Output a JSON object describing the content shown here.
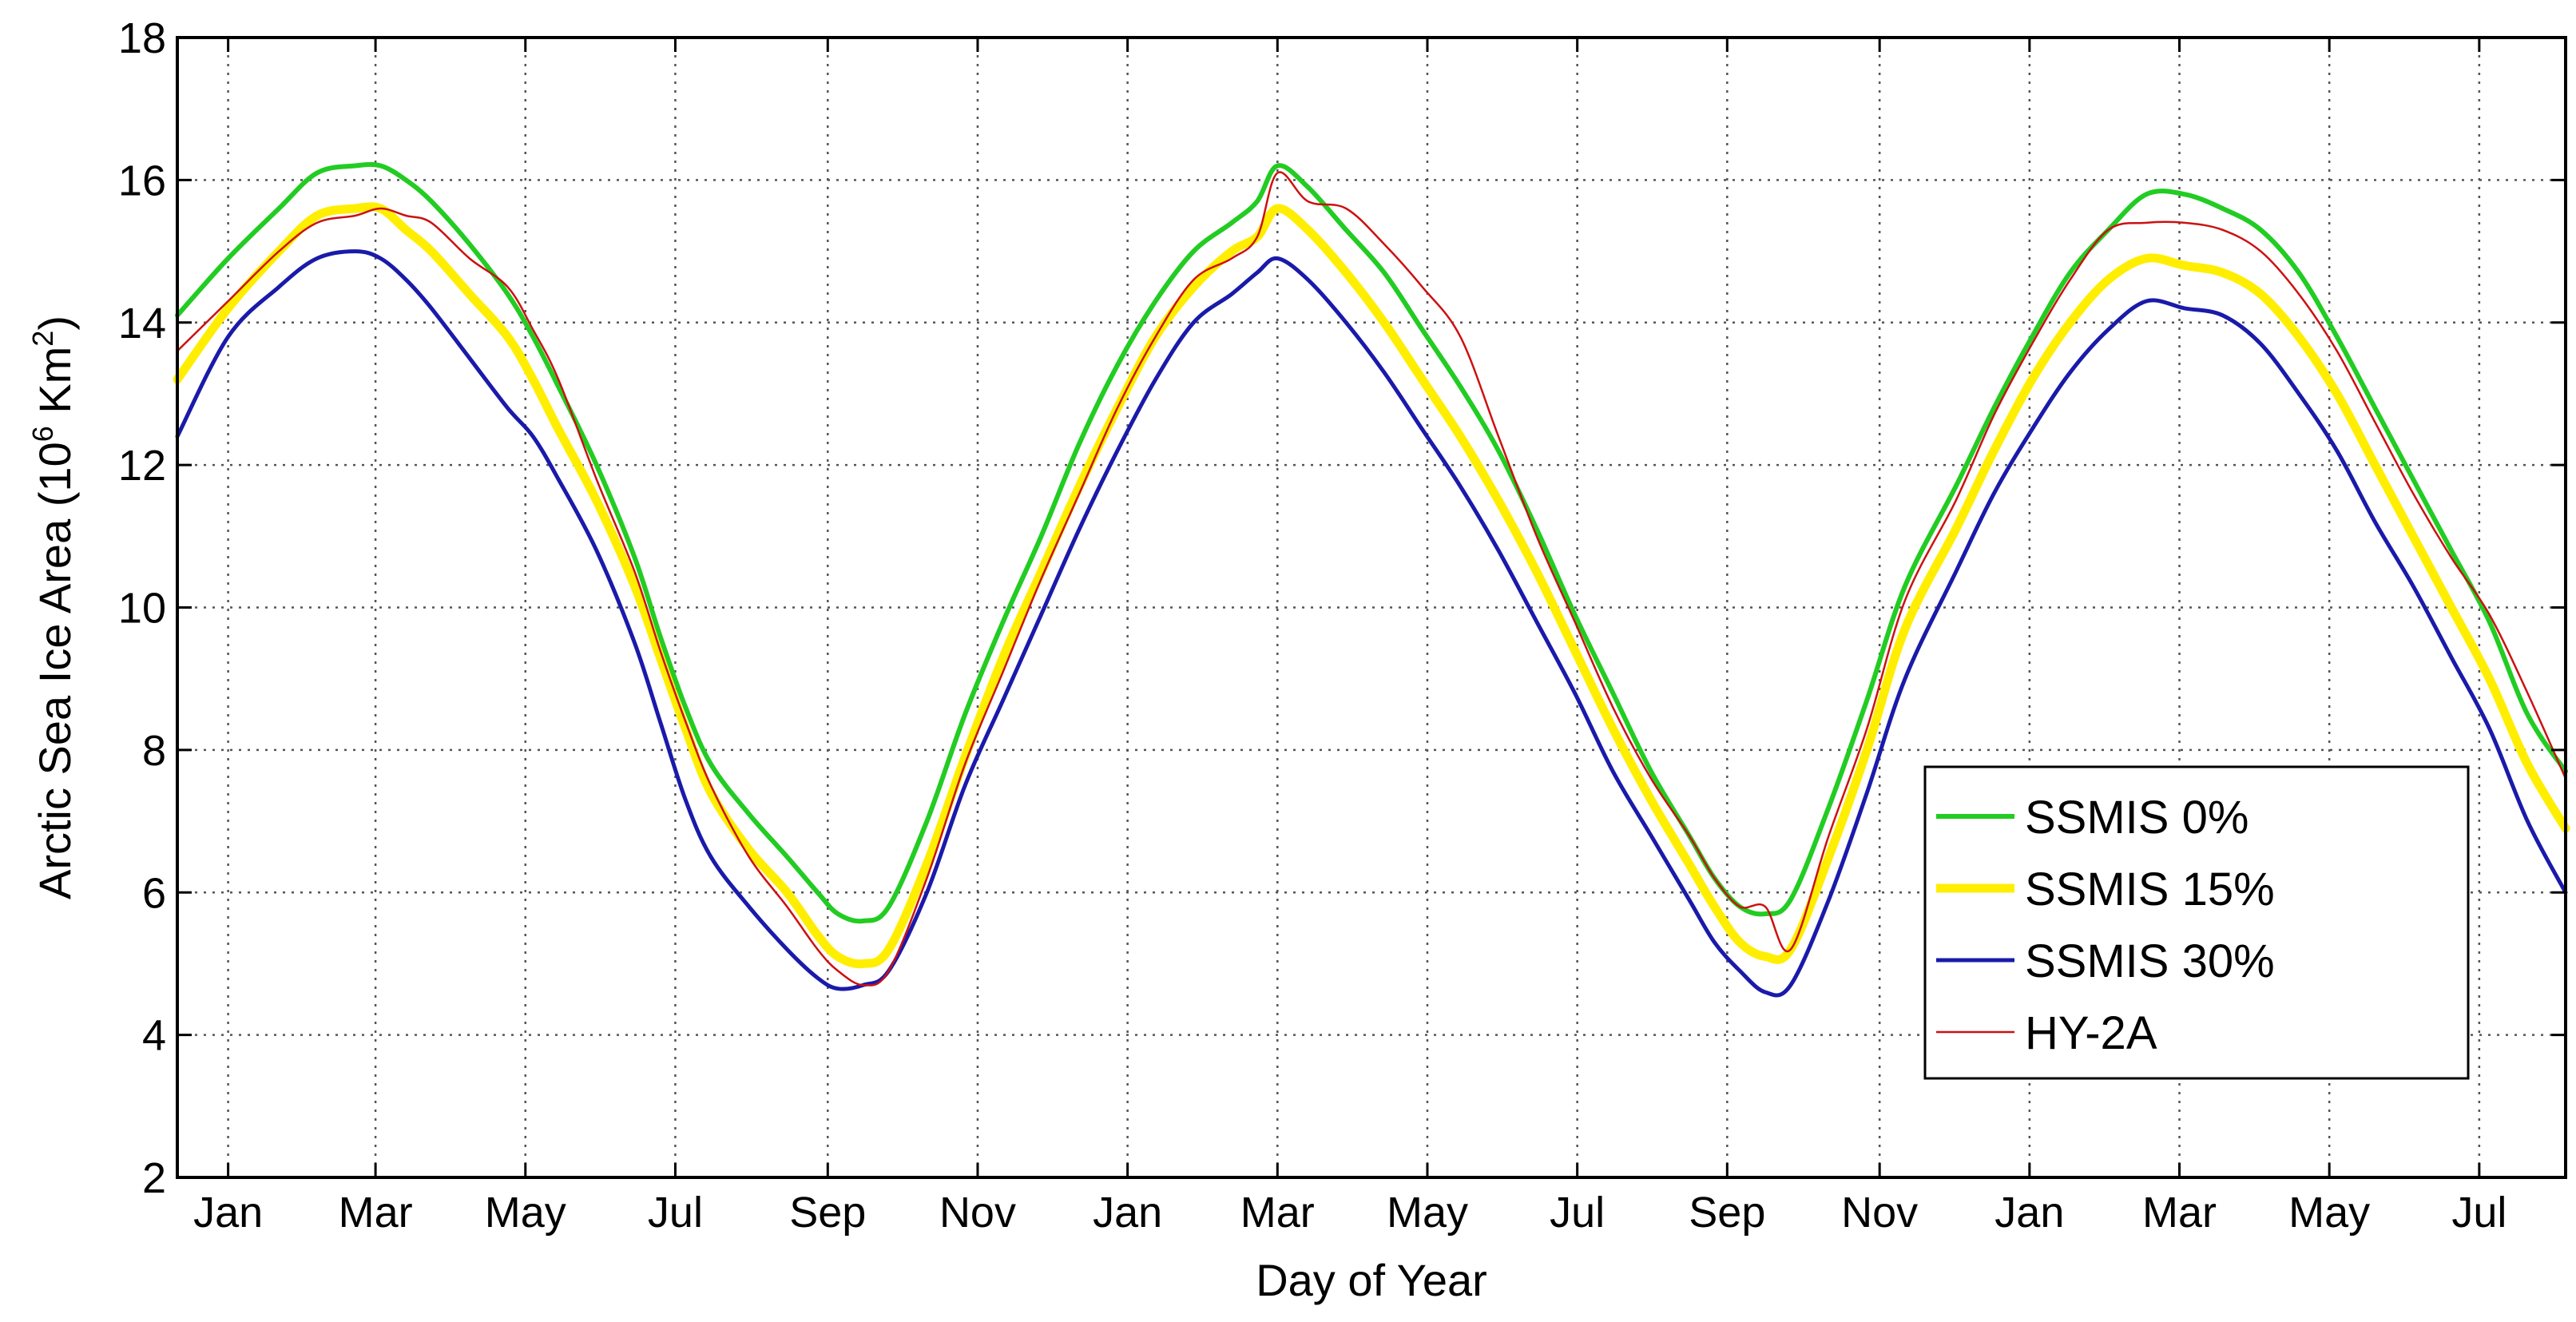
{
  "chart_data": {
    "type": "line",
    "title": "",
    "xlabel": "Day of Year",
    "ylabel": {
      "prefix": "Arctic Sea Ice Area (10",
      "exp1": "6",
      "mid": " Km",
      "exp2": "2",
      "suffix": ")"
    },
    "xlim": [
      0,
      940
    ],
    "ylim": [
      2,
      18
    ],
    "grid": true,
    "x_ticks": [
      {
        "x": 20,
        "label": "Jan"
      },
      {
        "x": 78,
        "label": "Mar"
      },
      {
        "x": 137,
        "label": "May"
      },
      {
        "x": 196,
        "label": "Jul"
      },
      {
        "x": 256,
        "label": "Sep"
      },
      {
        "x": 315,
        "label": "Nov"
      },
      {
        "x": 374,
        "label": "Jan"
      },
      {
        "x": 433,
        "label": "Mar"
      },
      {
        "x": 492,
        "label": "May"
      },
      {
        "x": 551,
        "label": "Jul"
      },
      {
        "x": 610,
        "label": "Sep"
      },
      {
        "x": 670,
        "label": "Nov"
      },
      {
        "x": 729,
        "label": "Jan"
      },
      {
        "x": 788,
        "label": "Mar"
      },
      {
        "x": 847,
        "label": "May"
      },
      {
        "x": 906,
        "label": "Jul"
      }
    ],
    "y_ticks": [
      2,
      4,
      6,
      8,
      10,
      12,
      14,
      16,
      18
    ],
    "legend_position": "lower-right",
    "series": [
      {
        "name": "SSMIS  0%",
        "color": "#22cc22",
        "width": 6,
        "x": [
          0,
          20,
          40,
          55,
          70,
          80,
          90,
          100,
          115,
          130,
          140,
          150,
          165,
          180,
          190,
          200,
          210,
          225,
          240,
          252,
          260,
          270,
          280,
          295,
          310,
          325,
          340,
          355,
          370,
          385,
          400,
          415,
          425,
          433,
          445,
          460,
          475,
          490,
          505,
          520,
          535,
          550,
          565,
          580,
          595,
          605,
          615,
          625,
          635,
          650,
          665,
          680,
          700,
          715,
          730,
          745,
          760,
          775,
          790,
          805,
          820,
          835,
          850,
          865,
          880,
          895,
          910,
          925,
          940
        ],
        "y": [
          14.1,
          14.9,
          15.6,
          16.1,
          16.2,
          16.2,
          16.0,
          15.7,
          15.1,
          14.4,
          13.8,
          13.1,
          12.0,
          10.7,
          9.6,
          8.6,
          7.8,
          7.1,
          6.5,
          6.0,
          5.7,
          5.6,
          5.8,
          7.0,
          8.5,
          9.8,
          11.0,
          12.3,
          13.4,
          14.3,
          15.0,
          15.4,
          15.7,
          16.2,
          15.9,
          15.3,
          14.7,
          13.9,
          13.1,
          12.2,
          11.1,
          9.9,
          8.8,
          7.7,
          6.8,
          6.2,
          5.8,
          5.7,
          5.9,
          7.2,
          8.7,
          10.3,
          11.7,
          12.8,
          13.8,
          14.7,
          15.3,
          15.8,
          15.8,
          15.6,
          15.3,
          14.7,
          13.8,
          12.8,
          11.8,
          10.8,
          9.8,
          8.5,
          7.7
        ]
      },
      {
        "name": "SSMIS 15%",
        "color": "#ffee00",
        "width": 11,
        "x": [
          0,
          20,
          40,
          55,
          70,
          80,
          90,
          100,
          115,
          130,
          140,
          150,
          165,
          180,
          190,
          200,
          210,
          225,
          240,
          252,
          260,
          270,
          280,
          295,
          310,
          325,
          340,
          355,
          370,
          385,
          400,
          415,
          425,
          433,
          445,
          460,
          475,
          490,
          505,
          520,
          535,
          550,
          565,
          580,
          595,
          605,
          615,
          625,
          635,
          650,
          665,
          680,
          700,
          715,
          730,
          745,
          760,
          775,
          790,
          805,
          820,
          835,
          850,
          865,
          880,
          895,
          910,
          925,
          940
        ],
        "y": [
          13.2,
          14.2,
          15.0,
          15.5,
          15.6,
          15.6,
          15.3,
          15.0,
          14.4,
          13.8,
          13.2,
          12.5,
          11.5,
          10.3,
          9.3,
          8.3,
          7.4,
          6.6,
          6.0,
          5.4,
          5.1,
          5.0,
          5.2,
          6.4,
          7.9,
          9.3,
          10.5,
          11.7,
          12.8,
          13.8,
          14.5,
          15.0,
          15.2,
          15.6,
          15.3,
          14.7,
          14.0,
          13.2,
          12.4,
          11.5,
          10.5,
          9.4,
          8.3,
          7.3,
          6.4,
          5.8,
          5.3,
          5.1,
          5.2,
          6.5,
          8.0,
          9.7,
          11.1,
          12.2,
          13.2,
          14.0,
          14.6,
          14.9,
          14.8,
          14.7,
          14.4,
          13.8,
          13.0,
          12.0,
          11.0,
          10.0,
          9.0,
          7.8,
          6.9
        ]
      },
      {
        "name": "SSMIS 30%",
        "color": "#1a1aaa",
        "width": 5,
        "x": [
          0,
          20,
          40,
          55,
          70,
          80,
          90,
          100,
          115,
          130,
          140,
          150,
          165,
          180,
          190,
          200,
          210,
          225,
          240,
          252,
          260,
          270,
          280,
          295,
          310,
          325,
          340,
          355,
          370,
          385,
          400,
          415,
          425,
          433,
          445,
          460,
          475,
          490,
          505,
          520,
          535,
          550,
          565,
          580,
          595,
          605,
          615,
          625,
          635,
          650,
          665,
          680,
          700,
          715,
          730,
          745,
          760,
          775,
          790,
          805,
          820,
          835,
          850,
          865,
          880,
          895,
          910,
          925,
          940
        ],
        "y": [
          12.4,
          13.8,
          14.5,
          14.9,
          15.0,
          14.9,
          14.6,
          14.2,
          13.5,
          12.8,
          12.4,
          11.8,
          10.8,
          9.5,
          8.4,
          7.3,
          6.5,
          5.8,
          5.2,
          4.8,
          4.65,
          4.7,
          4.9,
          6.0,
          7.5,
          8.7,
          9.9,
          11.1,
          12.2,
          13.2,
          14.0,
          14.4,
          14.7,
          14.9,
          14.6,
          14.0,
          13.3,
          12.5,
          11.7,
          10.8,
          9.8,
          8.8,
          7.7,
          6.8,
          5.9,
          5.3,
          4.9,
          4.6,
          4.7,
          5.9,
          7.4,
          9.0,
          10.5,
          11.6,
          12.5,
          13.3,
          13.9,
          14.3,
          14.2,
          14.1,
          13.7,
          13.0,
          12.2,
          11.2,
          10.3,
          9.3,
          8.3,
          7.0,
          6.0
        ]
      },
      {
        "name": "HY-2A",
        "color": "#cc1111",
        "width": 2.5,
        "x": [
          0,
          20,
          40,
          55,
          70,
          80,
          90,
          100,
          115,
          130,
          140,
          150,
          165,
          180,
          190,
          200,
          210,
          225,
          240,
          252,
          260,
          270,
          280,
          295,
          310,
          325,
          340,
          355,
          370,
          385,
          400,
          415,
          425,
          433,
          445,
          460,
          475,
          490,
          505,
          520,
          535,
          550,
          565,
          580,
          595,
          605,
          615,
          625,
          635,
          650,
          665,
          680,
          700,
          715,
          730,
          745,
          760,
          775,
          790,
          805,
          820,
          835,
          850,
          865,
          880,
          895,
          910,
          925,
          940
        ],
        "y": [
          13.6,
          14.3,
          15.0,
          15.4,
          15.5,
          15.6,
          15.5,
          15.4,
          14.9,
          14.5,
          13.9,
          13.2,
          11.8,
          10.5,
          9.4,
          8.4,
          7.5,
          6.5,
          5.8,
          5.2,
          4.9,
          4.7,
          4.9,
          6.2,
          7.8,
          9.1,
          10.4,
          11.6,
          12.8,
          13.8,
          14.6,
          14.9,
          15.2,
          16.1,
          15.7,
          15.6,
          15.1,
          14.5,
          13.8,
          12.4,
          11.0,
          9.8,
          8.6,
          7.6,
          6.8,
          6.2,
          5.8,
          5.8,
          5.2,
          6.8,
          8.3,
          10.1,
          11.5,
          12.7,
          13.7,
          14.6,
          15.3,
          15.4,
          15.4,
          15.3,
          15.0,
          14.4,
          13.6,
          12.6,
          11.6,
          10.7,
          9.9,
          8.8,
          7.6
        ]
      }
    ]
  }
}
